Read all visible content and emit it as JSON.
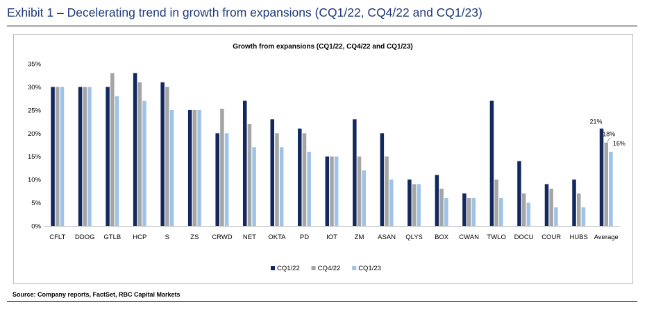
{
  "exhibit": {
    "title": "Exhibit 1 – Decelerating trend in growth from expansions (CQ1/22, CQ4/22 and CQ1/23)",
    "source": "Source: Company reports, FactSet, RBC Capital Markets"
  },
  "colors": {
    "title": "#1f3a7a",
    "series": [
      "#13285e",
      "#a5a5a5",
      "#9ec3e6"
    ]
  },
  "chart_data": {
    "type": "bar",
    "title": "Growth from expansions (CQ1/22, CQ4/22 and CQ1/23)",
    "xlabel": "",
    "ylabel": "",
    "ylim": [
      0,
      35
    ],
    "yticks": [
      "0%",
      "5%",
      "10%",
      "15%",
      "20%",
      "25%",
      "30%",
      "35%"
    ],
    "grid": false,
    "legend_position": "bottom",
    "categories": [
      "CFLT",
      "DDOG",
      "GTLB",
      "HCP",
      "S",
      "ZS",
      "CRWD",
      "NET",
      "OKTA",
      "PD",
      "IOT",
      "ZM",
      "ASAN",
      "QLYS",
      "BOX",
      "CWAN",
      "TWLO",
      "DOCU",
      "COUR",
      "HUBS",
      "Average"
    ],
    "series": [
      {
        "name": "CQ1/22",
        "values": [
          30,
          30,
          30,
          33,
          31,
          25,
          20,
          27,
          23,
          21,
          15,
          23,
          20,
          10,
          11,
          7,
          27,
          14,
          9,
          10,
          21
        ]
      },
      {
        "name": "CQ4/22",
        "values": [
          30,
          30,
          33,
          31,
          30,
          25,
          25.3,
          22,
          20,
          20,
          15,
          15,
          15,
          9,
          8,
          6,
          10,
          7,
          8,
          7,
          18
        ]
      },
      {
        "name": "CQ1/23",
        "values": [
          30,
          30,
          28,
          27,
          25,
          25,
          20,
          17,
          17,
          16,
          15,
          12,
          10,
          9,
          6,
          6,
          6,
          5,
          4,
          4,
          16
        ]
      }
    ],
    "data_labels": {
      "category": "Average",
      "labels": [
        "21%",
        "18%",
        "16%"
      ]
    }
  }
}
